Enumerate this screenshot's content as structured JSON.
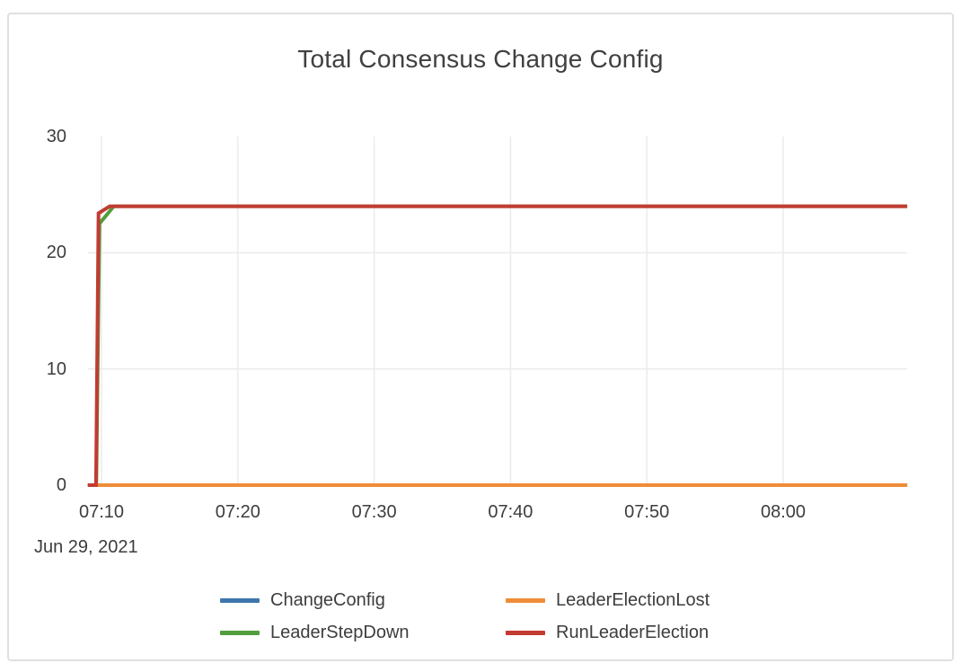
{
  "card": {
    "background": "#ffffff",
    "border_color": "#e0e0e0"
  },
  "chart_data": {
    "type": "line",
    "title": "Total Consensus Change Config",
    "grid": true,
    "gridline_color": "#ececec",
    "text_color": "#3d3d3d",
    "x_axis": {
      "date_label": "Jun 29, 2021",
      "unit": "minutes after 07:00 on Jun 29, 2021",
      "range_minutes": [
        69,
        129.1
      ],
      "ticks": [
        {
          "t": 70,
          "label": "07:10"
        },
        {
          "t": 80,
          "label": "07:20"
        },
        {
          "t": 90,
          "label": "07:30"
        },
        {
          "t": 100,
          "label": "07:40"
        },
        {
          "t": 110,
          "label": "07:50"
        },
        {
          "t": 120,
          "label": "08:00"
        }
      ]
    },
    "y_axis": {
      "range": [
        0,
        30
      ],
      "ticks": [
        {
          "v": 0,
          "label": "0"
        },
        {
          "v": 10,
          "label": "10"
        },
        {
          "v": 20,
          "label": "20"
        },
        {
          "v": 30,
          "label": "30"
        }
      ],
      "gridline_values": [
        10,
        20
      ]
    },
    "series": [
      {
        "name": "ChangeConfig",
        "color": "#3c76ac",
        "points": [
          [
            69,
            0
          ],
          [
            129.1,
            0
          ]
        ]
      },
      {
        "name": "LeaderStepDown",
        "color": "#519e3c",
        "points": [
          [
            69,
            0
          ],
          [
            69.62,
            0
          ],
          [
            69.85,
            22.5
          ],
          [
            70.9,
            24
          ],
          [
            129.1,
            24
          ]
        ]
      },
      {
        "name": "LeaderElectionLost",
        "color": "#ef8d38",
        "points": [
          [
            69,
            0
          ],
          [
            129.1,
            0
          ]
        ]
      },
      {
        "name": "RunLeaderElection",
        "color": "#c23b32",
        "points": [
          [
            69,
            0
          ],
          [
            69.6,
            0
          ],
          [
            69.78,
            23.4
          ],
          [
            70.6,
            24
          ],
          [
            129.1,
            24
          ]
        ]
      }
    ],
    "steady_state_value": 24,
    "legend": {
      "position": "bottom",
      "rows": [
        [
          "ChangeConfig",
          "LeaderElectionLost"
        ],
        [
          "LeaderStepDown",
          "RunLeaderElection"
        ]
      ]
    }
  }
}
